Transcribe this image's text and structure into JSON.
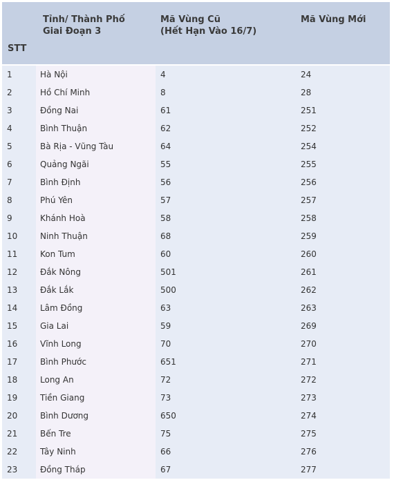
{
  "header": {
    "stt": "STT",
    "province_line1": "Tỉnh/ Thành Phố",
    "province_line2": "Giai Đoạn 3",
    "old_code_line1": "Mã Vùng Cũ",
    "old_code_line2": "(Hết Hạn Vào 16/7)",
    "new_code": "Mã Vùng Mới"
  },
  "rows": [
    {
      "stt": "1",
      "province": "Hà Nội",
      "old": "4",
      "new": "24"
    },
    {
      "stt": "2",
      "province": "Hồ Chí Minh",
      "old": "8",
      "new": "28"
    },
    {
      "stt": "3",
      "province": "Đồng Nai",
      "old": "61",
      "new": "251"
    },
    {
      "stt": "4",
      "province": "Bình Thuận",
      "old": "62",
      "new": "252"
    },
    {
      "stt": "5",
      "province": "Bà Rịa - Vũng Tàu",
      "old": "64",
      "new": "254"
    },
    {
      "stt": "6",
      "province": "Quảng Ngãi",
      "old": "55",
      "new": "255"
    },
    {
      "stt": "7",
      "province": "Bình Định",
      "old": "56",
      "new": "256"
    },
    {
      "stt": "8",
      "province": "Phú Yên",
      "old": "57",
      "new": "257"
    },
    {
      "stt": "9",
      "province": "Khánh Hoà",
      "old": "58",
      "new": "258"
    },
    {
      "stt": "10",
      "province": "Ninh Thuận",
      "old": "68",
      "new": "259"
    },
    {
      "stt": "11",
      "province": "Kon Tum",
      "old": "60",
      "new": "260"
    },
    {
      "stt": "12",
      "province": "Đắk Nông",
      "old": "501",
      "new": "261"
    },
    {
      "stt": "13",
      "province": "Đắk Lắk",
      "old": "500",
      "new": "262"
    },
    {
      "stt": "14",
      "province": "Lâm Đồng",
      "old": "63",
      "new": "263"
    },
    {
      "stt": "15",
      "province": "Gia Lai",
      "old": "59",
      "new": "269"
    },
    {
      "stt": "16",
      "province": "Vĩnh Long",
      "old": "70",
      "new": "270"
    },
    {
      "stt": "17",
      "province": "Bình Phước",
      "old": "651",
      "new": "271"
    },
    {
      "stt": "18",
      "province": "Long An",
      "old": "72",
      "new": "272"
    },
    {
      "stt": "19",
      "province": "Tiền Giang",
      "old": "73",
      "new": "273"
    },
    {
      "stt": "20",
      "province": "Bình Dương",
      "old": "650",
      "new": "274"
    },
    {
      "stt": "21",
      "province": "Bến Tre",
      "old": "75",
      "new": "275"
    },
    {
      "stt": "22",
      "province": "Tây Ninh",
      "old": "66",
      "new": "276"
    },
    {
      "stt": "23",
      "province": "Đồng Tháp",
      "old": "67",
      "new": "277"
    }
  ]
}
